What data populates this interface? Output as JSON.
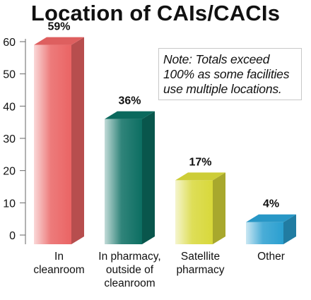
{
  "chart_data": {
    "type": "bar",
    "title": "Location of CAIs/CACIs",
    "categories": [
      "In\ncleanroom",
      "In pharmacy,\noutside of\ncleanroom",
      "Satellite\npharmacy",
      "Other"
    ],
    "values": [
      59,
      36,
      17,
      4
    ],
    "data_labels": [
      "59%",
      "36%",
      "17%",
      "4%"
    ],
    "ylim": [
      0,
      60
    ],
    "yticks": [
      "0",
      "10",
      "20",
      "30",
      "40",
      "50",
      "60"
    ],
    "annotation": "Note: Totals exceed\n100% as some facilities\nuse multiple locations.",
    "grid": false,
    "legend": "none",
    "colors": [
      "#ea6464",
      "#0c6e62",
      "#d8d83a",
      "#2a9fd0"
    ]
  }
}
